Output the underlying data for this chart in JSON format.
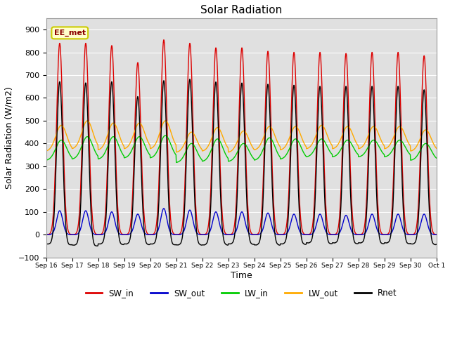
{
  "title": "Solar Radiation",
  "xlabel": "Time",
  "ylabel": "Solar Radiation (W/m2)",
  "ylim": [
    -100,
    950
  ],
  "yticks": [
    -100,
    0,
    100,
    200,
    300,
    400,
    500,
    600,
    700,
    800,
    900
  ],
  "start_day": 16,
  "num_days": 15,
  "colors": {
    "SW_in": "#dd0000",
    "SW_out": "#0000cc",
    "LW_in": "#00cc00",
    "LW_out": "#ffaa00",
    "Rnet": "#000000"
  },
  "annotation_text": "EE_met",
  "bg_color": "#e0e0e0",
  "fig_color": "#ffffff",
  "grid_color": "#ffffff",
  "xtick_labels": [
    "Sep 16",
    "Sep 17",
    "Sep 18",
    "Sep 19",
    "Sep 20",
    "Sep 21",
    "Sep 22",
    "Sep 23",
    "Sep 24",
    "Sep 25",
    "Sep 26",
    "Sep 27",
    "Sep 28",
    "Sep 29",
    "Sep 30",
    "Oct 1"
  ],
  "SW_in_peaks": [
    840,
    840,
    830,
    755,
    855,
    840,
    820,
    820,
    805,
    800,
    800,
    795,
    800,
    800,
    785
  ],
  "SW_out_peaks": [
    105,
    105,
    100,
    90,
    115,
    108,
    100,
    100,
    95,
    90,
    90,
    85,
    90,
    90,
    90
  ],
  "LW_in_base": [
    325,
    330,
    330,
    335,
    335,
    315,
    320,
    320,
    325,
    330,
    340,
    340,
    340,
    340,
    325
  ],
  "LW_in_peak": [
    415,
    430,
    430,
    430,
    435,
    400,
    420,
    400,
    425,
    420,
    420,
    415,
    415,
    415,
    400
  ],
  "LW_out_base": [
    365,
    375,
    370,
    375,
    375,
    360,
    365,
    360,
    370,
    370,
    375,
    375,
    375,
    375,
    365
  ],
  "LW_out_peak": [
    480,
    500,
    490,
    490,
    500,
    450,
    470,
    455,
    475,
    475,
    480,
    475,
    475,
    475,
    460
  ],
  "line_width": 1.0
}
